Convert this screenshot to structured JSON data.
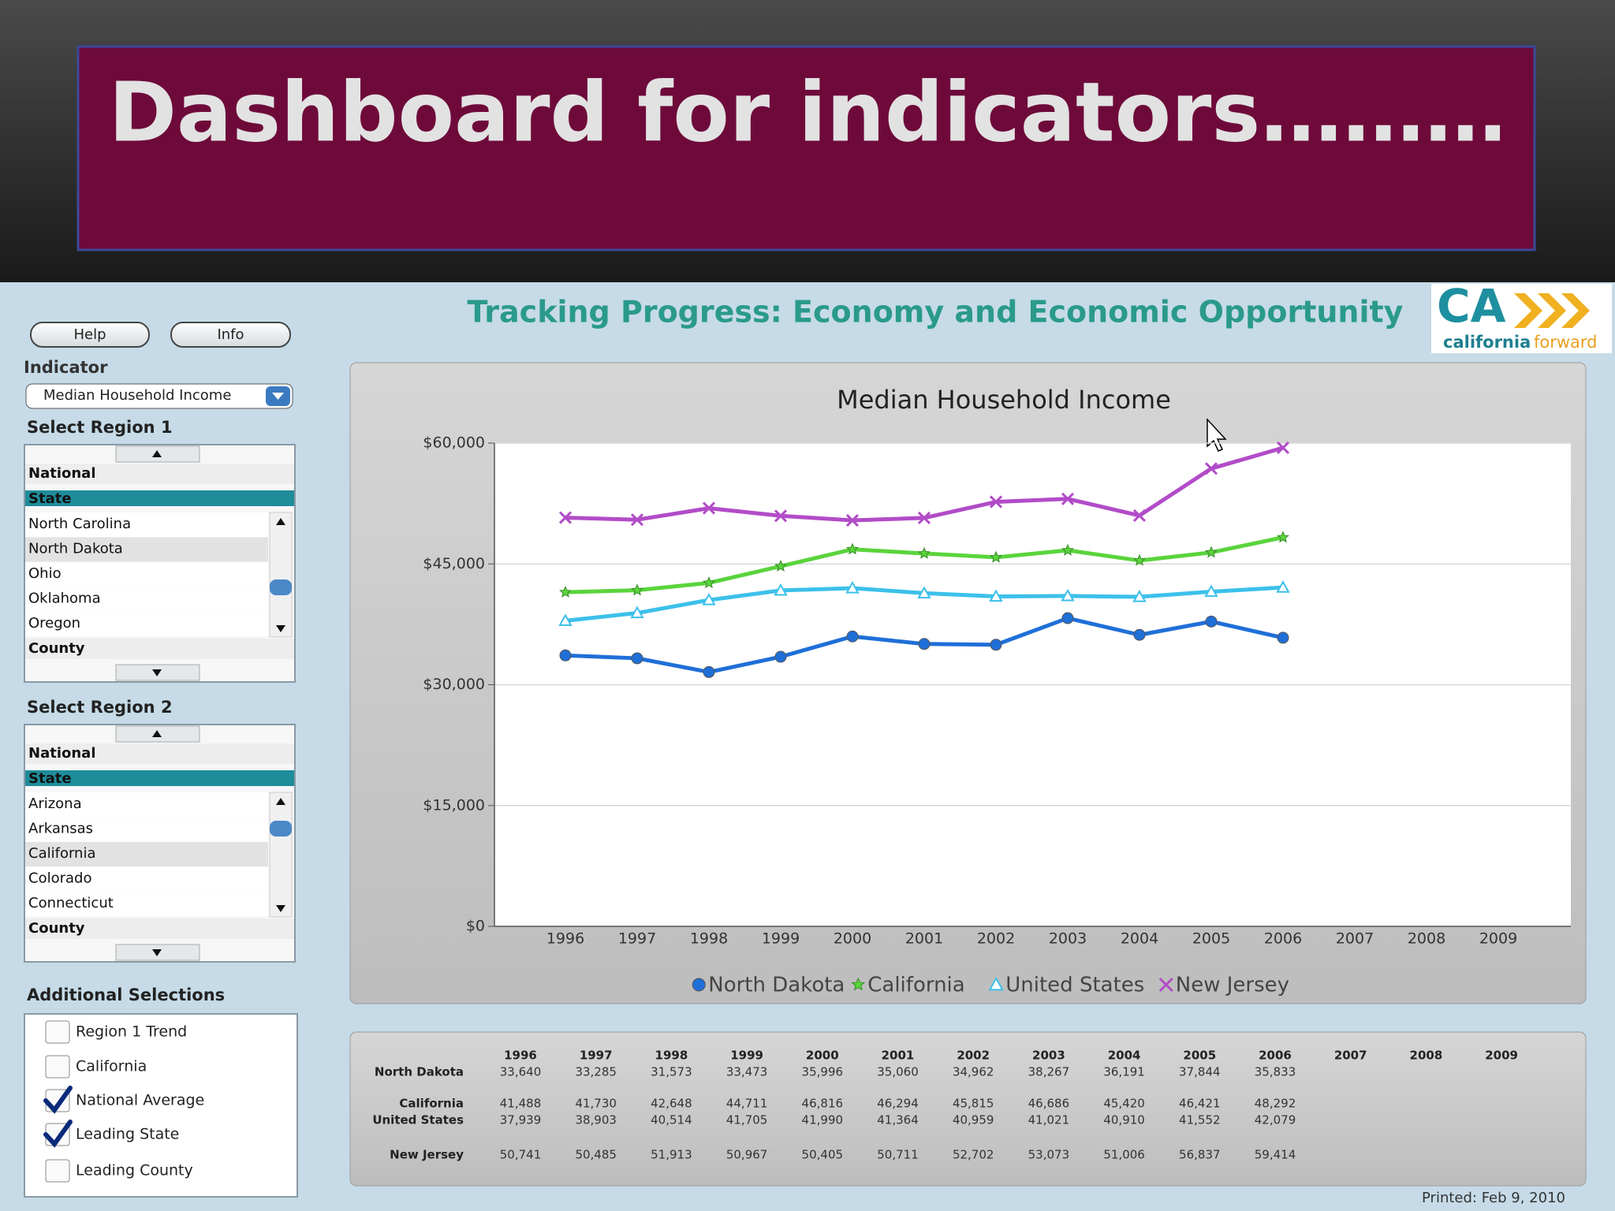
{
  "slide_title": "Dashboard for indicators………",
  "header": "Tracking Progress: Economy and Economic Opportunity",
  "logo": {
    "mark": "CA",
    "name": [
      "california",
      "forward"
    ]
  },
  "sidebar": {
    "buttons": [
      "Help",
      "Info"
    ],
    "indicator": {
      "label": "Indicator",
      "selected": "Median Household Income"
    },
    "regions": [
      {
        "label": "Select Region 1",
        "groups": [
          "National",
          "State",
          "County"
        ],
        "states": [
          {
            "label": "North Carolina"
          },
          {
            "label": "North Dakota",
            "selected": true
          },
          {
            "label": "Ohio"
          },
          {
            "label": "Oklahoma"
          },
          {
            "label": "Oregon"
          }
        ]
      },
      {
        "label": "Select Region 2",
        "groups": [
          "National",
          "State",
          "County"
        ],
        "states": [
          {
            "label": "Arizona"
          },
          {
            "label": "Arkansas"
          },
          {
            "label": "California",
            "selected": true
          },
          {
            "label": "Colorado"
          },
          {
            "label": "Connecticut"
          }
        ]
      }
    ],
    "additional": {
      "label": "Additional Selections",
      "options": [
        {
          "label": "Region 1 Trend",
          "checked": false
        },
        {
          "label": "California",
          "checked": false
        },
        {
          "label": "National Average",
          "checked": true
        },
        {
          "label": "Leading State",
          "checked": true
        },
        {
          "label": "Leading County",
          "checked": false
        }
      ]
    }
  },
  "chart_data": {
    "type": "line",
    "title": "Median Household Income",
    "categories": [
      "1996",
      "1997",
      "1998",
      "1999",
      "2000",
      "2001",
      "2002",
      "2003",
      "2004",
      "2005",
      "2006",
      "2007",
      "2008",
      "2009"
    ],
    "ylim": [
      0,
      60000
    ],
    "yticks": [
      {
        "value": 0,
        "label": "$0"
      },
      {
        "value": 15000,
        "label": "$15,000"
      },
      {
        "value": 30000,
        "label": "$30,000"
      },
      {
        "value": 45000,
        "label": "$45,000"
      },
      {
        "value": 60000,
        "label": "$60,000"
      }
    ],
    "grid": true,
    "legend": "bottom",
    "series": [
      {
        "name": "North Dakota",
        "color": "#1f6fd8",
        "marker": "circle",
        "values": [
          33640,
          33285,
          31573,
          33473,
          35996,
          35060,
          34962,
          38267,
          36191,
          37844,
          35833,
          null,
          null,
          null
        ],
        "value_labels": [
          "33,640",
          "33,285",
          "31,573",
          "33,473",
          "35,996",
          "35,060",
          "34,962",
          "38,267",
          "36,191",
          "37,844",
          "35,833",
          null,
          null,
          null
        ]
      },
      {
        "name": "California",
        "color": "#5ad43c",
        "marker": "star",
        "values": [
          41488,
          41730,
          42648,
          44711,
          46816,
          46294,
          45815,
          46686,
          45420,
          46421,
          48292,
          null,
          null,
          null
        ],
        "value_labels": [
          "41,488",
          "41,730",
          "42,648",
          "44,711",
          "46,816",
          "46,294",
          "45,815",
          "46,686",
          "45,420",
          "46,421",
          "48,292",
          null,
          null,
          null
        ]
      },
      {
        "name": "United States",
        "color": "#3cc0ea",
        "marker": "triangle",
        "values": [
          37939,
          38903,
          40514,
          41705,
          41990,
          41364,
          40959,
          41021,
          40910,
          41552,
          42079,
          null,
          null,
          null
        ],
        "value_labels": [
          "37,939",
          "38,903",
          "40,514",
          "41,705",
          "41,990",
          "41,364",
          "40,959",
          "41,021",
          "40,910",
          "41,552",
          "42,079",
          null,
          null,
          null
        ]
      },
      {
        "name": "New Jersey",
        "color": "#b24cc8",
        "marker": "x",
        "values": [
          50741,
          50485,
          51913,
          50967,
          50405,
          50711,
          52702,
          53073,
          51006,
          56837,
          59414,
          null,
          null,
          null
        ],
        "value_labels": [
          "50,741",
          "50,485",
          "51,913",
          "50,967",
          "50,405",
          "50,711",
          "52,702",
          "53,073",
          "51,006",
          "56,837",
          "59,414",
          null,
          null,
          null
        ]
      }
    ]
  },
  "printed": "Printed: Feb 9, 2010"
}
